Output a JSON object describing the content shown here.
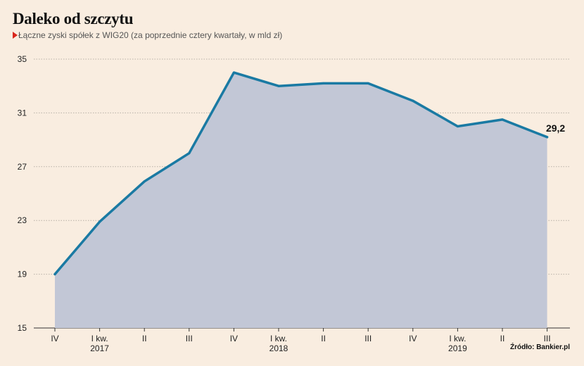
{
  "title": "Daleko od szczytu",
  "subtitle": "Łączne zyski spółek z WIG20 (za poprzednie cztery kwartały, w mld zł)",
  "source": "Źródło: Bankier.pl",
  "colors": {
    "line": "#1a7aa3",
    "area": "#c2c7d6",
    "marker": "#d9261c",
    "grid": "#b8b0a6"
  },
  "chart_data": {
    "type": "area",
    "title": "Daleko od szczytu",
    "ylabel": "mld zł",
    "ylim": [
      15,
      35
    ],
    "yticks": [
      35,
      31,
      27,
      23,
      19,
      15
    ],
    "categories": [
      "IV",
      "I kw.",
      "II",
      "III",
      "IV",
      "I kw.",
      "II",
      "III",
      "IV",
      "I kw.",
      "II",
      "III"
    ],
    "years": [
      {
        "label": "2017",
        "index": 1
      },
      {
        "label": "2018",
        "index": 5
      },
      {
        "label": "2019",
        "index": 9
      }
    ],
    "values": [
      19.0,
      22.9,
      25.9,
      28.0,
      34.0,
      33.0,
      33.2,
      33.2,
      31.9,
      30.0,
      30.5,
      29.2
    ],
    "last_value_label": "29,2"
  }
}
